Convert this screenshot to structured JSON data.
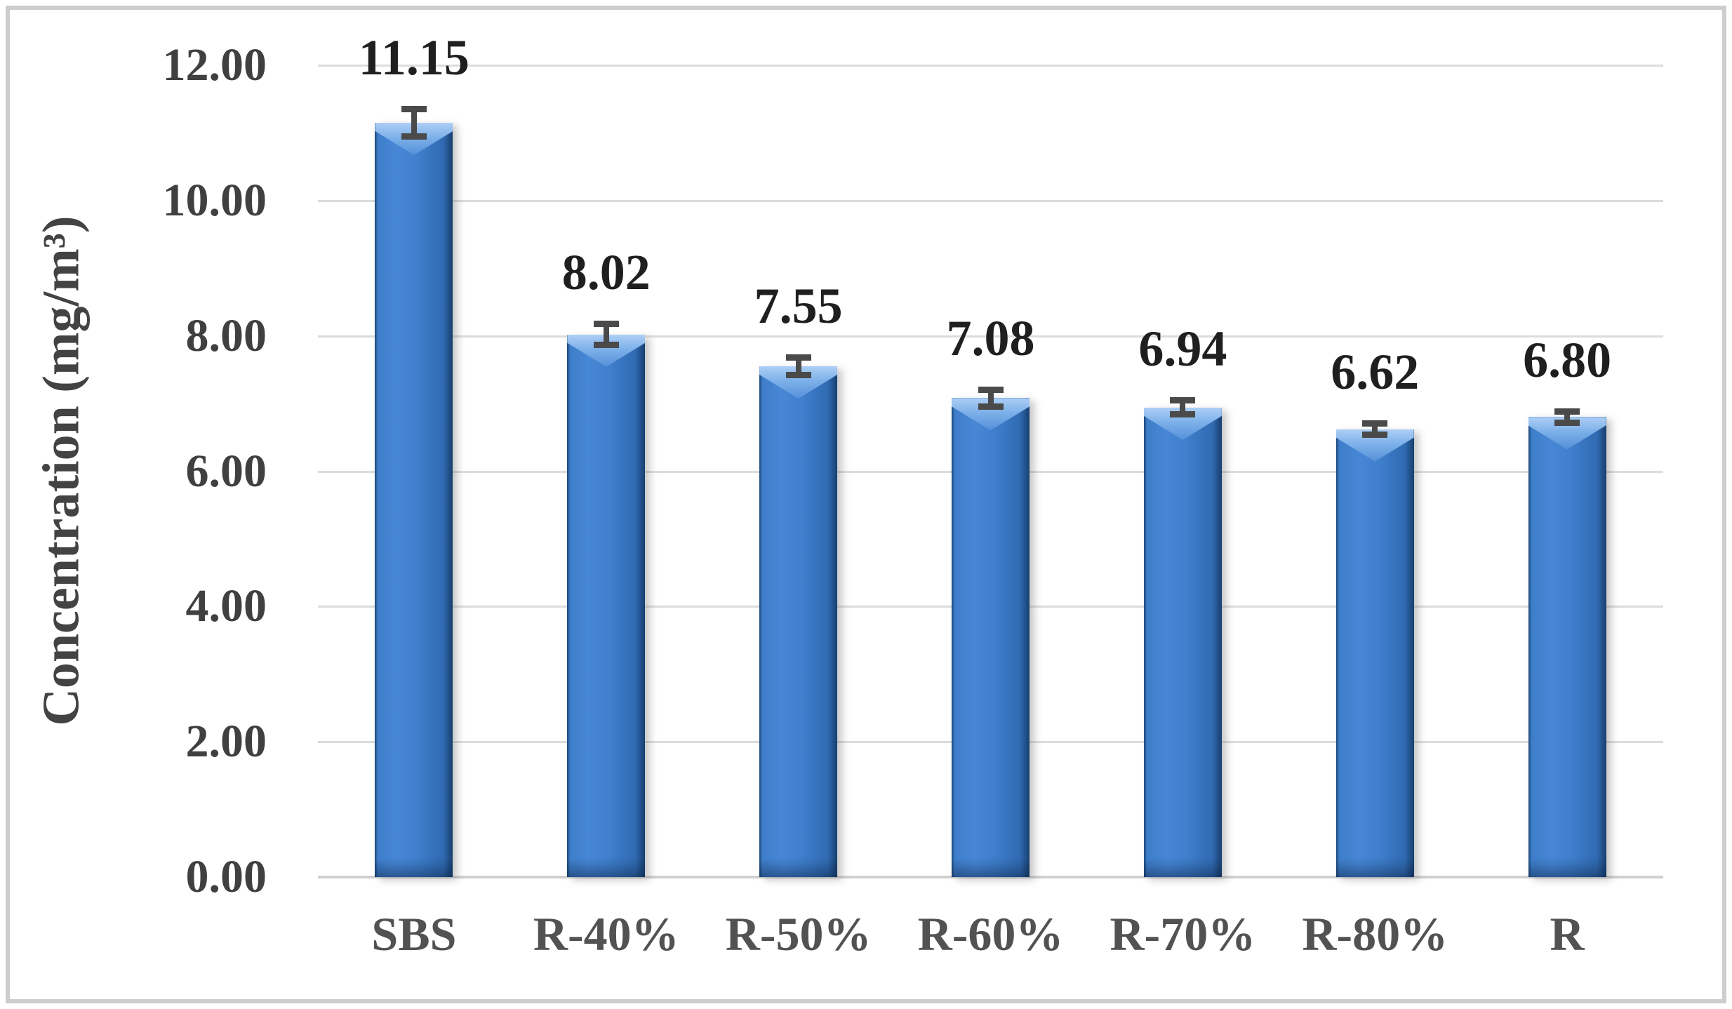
{
  "chart_data": {
    "type": "bar",
    "title": "",
    "xlabel": "",
    "ylabel": "Concentration (mg/m³)",
    "categories": [
      "SBS",
      "R-40%",
      "R-50%",
      "R-60%",
      "R-70%",
      "R-80%",
      "R"
    ],
    "values": [
      11.15,
      8.02,
      7.55,
      7.08,
      6.94,
      6.62,
      6.8
    ],
    "errors": [
      0.25,
      0.2,
      0.18,
      0.17,
      0.15,
      0.13,
      0.13
    ],
    "data_labels": [
      "11.15",
      "8.02",
      "7.55",
      "7.08",
      "6.94",
      "6.62",
      "6.80"
    ],
    "ylim": [
      0,
      12
    ],
    "ytick_step": 2,
    "ytick_labels": [
      "0.00",
      "2.00",
      "4.00",
      "6.00",
      "8.00",
      "10.00",
      "12.00"
    ],
    "grid": true,
    "legend": "none",
    "colors": {
      "bar_fill": "#3e7dc9",
      "bar_edge_dark": "#173f6e",
      "bar_bevel_light": "#aecff5",
      "error_bar": "#4a4a4a",
      "gridline": "#dcdcdc",
      "axis_line": "#d0d0d0",
      "tick_text": "#404040",
      "category_text": "#525252",
      "data_label_text": "#1f1f1f",
      "frame_border": "#cdcdcd"
    }
  }
}
